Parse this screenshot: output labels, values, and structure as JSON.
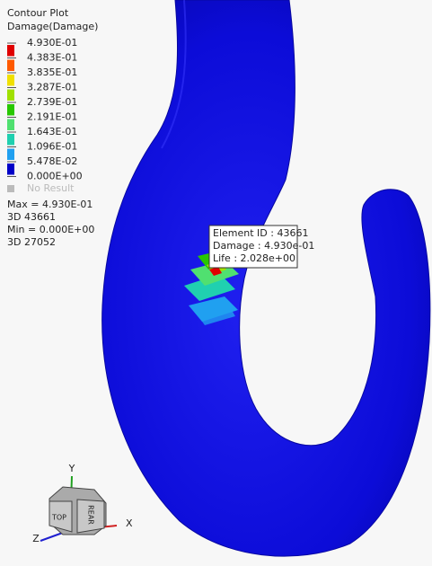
{
  "header": {
    "title": "Contour Plot",
    "subtitle": "Damage(Damage)"
  },
  "legend": {
    "labels": [
      "4.930E-01",
      "4.383E-01",
      "3.835E-01",
      "3.287E-01",
      "2.739E-01",
      "2.191E-01",
      "1.643E-01",
      "1.096E-01",
      "5.478E-02",
      "0.000E+00"
    ],
    "colors": [
      "#e00000",
      "#ff5a00",
      "#f0e000",
      "#a0e000",
      "#28c800",
      "#50e070",
      "#20d0b0",
      "#20a0f0",
      "#0000c8"
    ],
    "no_result": "No Result"
  },
  "summary": [
    "Max = 4.930E-01",
    "3D 43661",
    "Min = 0.000E+00",
    "3D 27052"
  ],
  "tooltip": [
    "Element ID : 43661",
    "Damage : 4.930e-01",
    "Life : 2.028e+00"
  ],
  "triad": {
    "x": "X",
    "y": "Y",
    "z": "Z",
    "top": "TOP",
    "rear": "REAR"
  }
}
